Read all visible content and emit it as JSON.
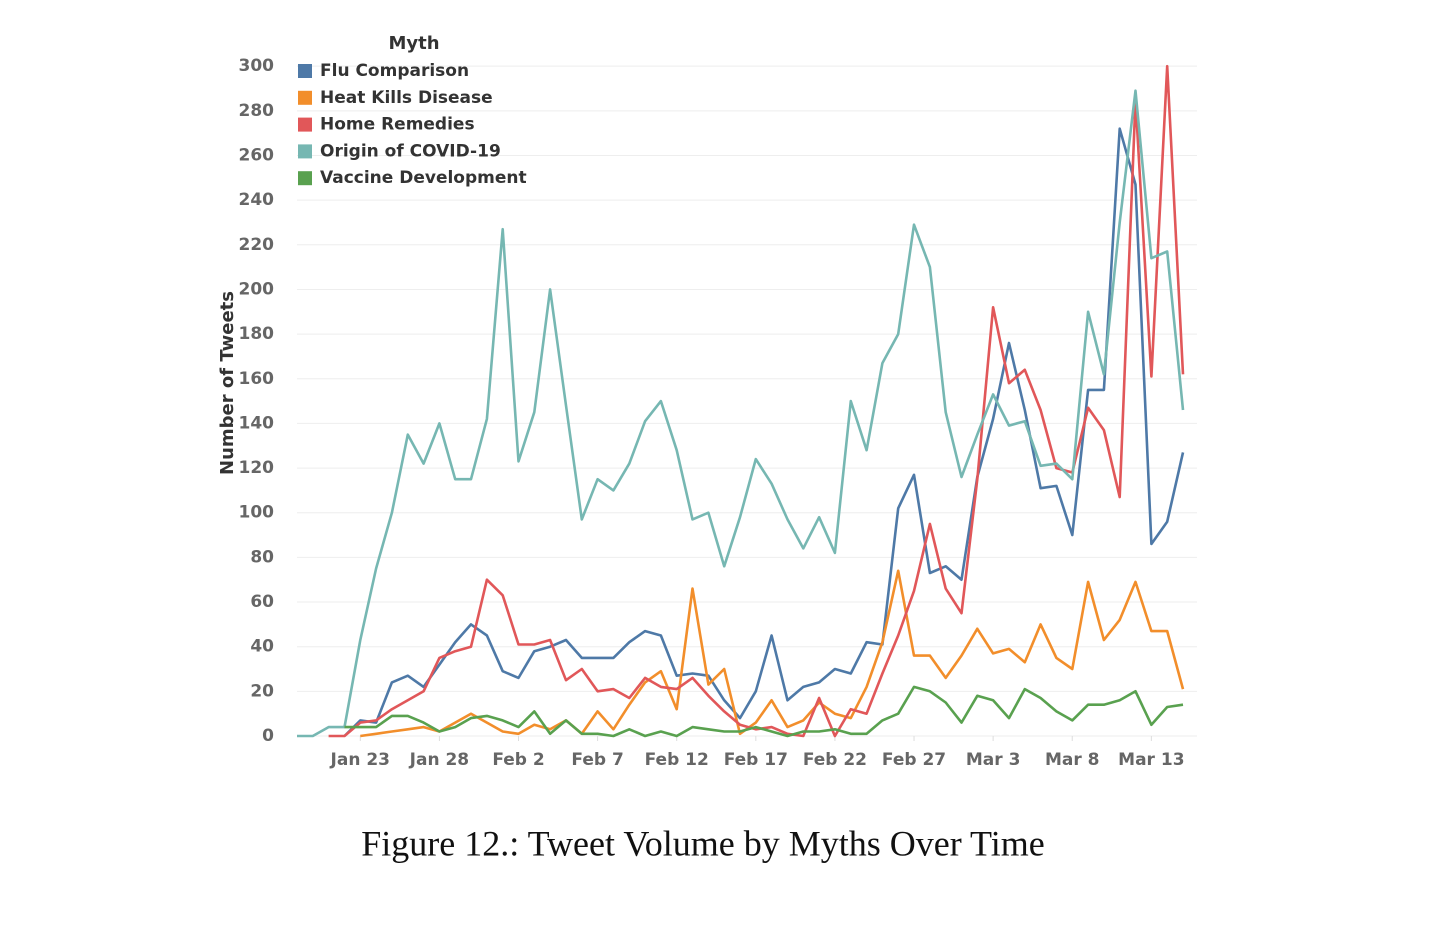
{
  "chart_data": {
    "type": "line",
    "caption": "Figure 12.: Tweet Volume by Myths Over Time",
    "y_label": "Number of Tweets",
    "legend_title": "Myth",
    "legend": "top-left",
    "grid": true,
    "x": [
      "Jan 19",
      "Jan 20",
      "Jan 21",
      "Jan 22",
      "Jan 23",
      "Jan 24",
      "Jan 25",
      "Jan 26",
      "Jan 27",
      "Jan 28",
      "Jan 29",
      "Jan 30",
      "Jan 31",
      "Feb 1",
      "Feb 2",
      "Feb 3",
      "Feb 4",
      "Feb 5",
      "Feb 6",
      "Feb 7",
      "Feb 8",
      "Feb 9",
      "Feb 10",
      "Feb 11",
      "Feb 12",
      "Feb 13",
      "Feb 14",
      "Feb 15",
      "Feb 16",
      "Feb 17",
      "Feb 18",
      "Feb 19",
      "Feb 20",
      "Feb 21",
      "Feb 22",
      "Feb 23",
      "Feb 24",
      "Feb 25",
      "Feb 26",
      "Feb 27",
      "Feb 28",
      "Feb 29",
      "Mar 1",
      "Mar 2",
      "Mar 3",
      "Mar 4",
      "Mar 5",
      "Mar 6",
      "Mar 7",
      "Mar 8",
      "Mar 9",
      "Mar 10",
      "Mar 11",
      "Mar 12",
      "Mar 13",
      "Mar 14",
      "Mar 15"
    ],
    "xticks": [
      "Jan 23",
      "Jan 28",
      "Feb 2",
      "Feb 7",
      "Feb 12",
      "Feb 17",
      "Feb 22",
      "Feb 27",
      "Mar 3",
      "Mar 8",
      "Mar 13"
    ],
    "ylim": [
      0,
      305
    ],
    "yticks": [
      0,
      20,
      40,
      60,
      80,
      100,
      120,
      140,
      160,
      180,
      200,
      220,
      240,
      260,
      280,
      300
    ],
    "series": [
      {
        "name": "Flu Comparison",
        "color": "#4e79a7",
        "values": [
          null,
          null,
          null,
          0,
          7,
          6,
          24,
          27,
          22,
          32,
          42,
          50,
          45,
          29,
          26,
          38,
          40,
          43,
          35,
          35,
          35,
          42,
          47,
          45,
          27,
          28,
          27,
          16,
          8,
          20,
          45,
          16,
          22,
          24,
          30,
          28,
          42,
          41,
          102,
          117,
          73,
          76,
          70,
          116,
          142,
          176,
          146,
          111,
          112,
          90,
          155,
          155,
          272,
          247,
          86,
          96,
          127
        ]
      },
      {
        "name": "Heat Kills Disease",
        "color": "#f28e2b",
        "values": [
          null,
          null,
          null,
          null,
          0,
          1,
          2,
          3,
          4,
          2,
          6,
          10,
          6,
          2,
          1,
          5,
          3,
          7,
          1,
          11,
          3,
          14,
          24,
          29,
          12,
          66,
          23,
          30,
          1,
          6,
          16,
          4,
          7,
          15,
          10,
          8,
          22,
          42,
          74,
          36,
          36,
          26,
          36,
          48,
          37,
          39,
          33,
          50,
          35,
          30,
          69,
          43,
          52,
          69,
          47,
          47,
          21
        ]
      },
      {
        "name": "Home Remedies",
        "color": "#e15759",
        "values": [
          null,
          null,
          0,
          0,
          6,
          7,
          12,
          16,
          20,
          35,
          38,
          40,
          70,
          63,
          41,
          41,
          43,
          25,
          30,
          20,
          21,
          17,
          26,
          22,
          21,
          26,
          18,
          11,
          5,
          3,
          4,
          1,
          0,
          17,
          0,
          12,
          10,
          28,
          45,
          65,
          95,
          66,
          55,
          115,
          192,
          158,
          164,
          146,
          120,
          118,
          147,
          137,
          107,
          285,
          161,
          300,
          162
        ]
      },
      {
        "name": "Origin of COVID-19",
        "color": "#76b7b2",
        "values": [
          0,
          0,
          4,
          4,
          43,
          75,
          100,
          135,
          122,
          140,
          115,
          115,
          142,
          227,
          123,
          145,
          200,
          148,
          97,
          115,
          110,
          122,
          141,
          150,
          128,
          97,
          100,
          76,
          98,
          124,
          113,
          97,
          84,
          98,
          82,
          150,
          128,
          167,
          180,
          229,
          210,
          145,
          116,
          135,
          153,
          139,
          141,
          121,
          122,
          115,
          190,
          162,
          230,
          289,
          214,
          217,
          146
        ]
      },
      {
        "name": "Vaccine Development",
        "color": "#59a14f",
        "values": [
          null,
          null,
          null,
          4,
          4,
          4,
          9,
          9,
          6,
          2,
          4,
          8,
          9,
          7,
          4,
          11,
          1,
          7,
          1,
          1,
          0,
          3,
          0,
          2,
          0,
          4,
          3,
          2,
          2,
          4,
          2,
          0,
          2,
          2,
          3,
          1,
          1,
          7,
          10,
          22,
          20,
          15,
          6,
          18,
          16,
          8,
          21,
          17,
          11,
          7,
          14,
          14,
          16,
          20,
          5,
          13,
          14
        ]
      }
    ]
  }
}
